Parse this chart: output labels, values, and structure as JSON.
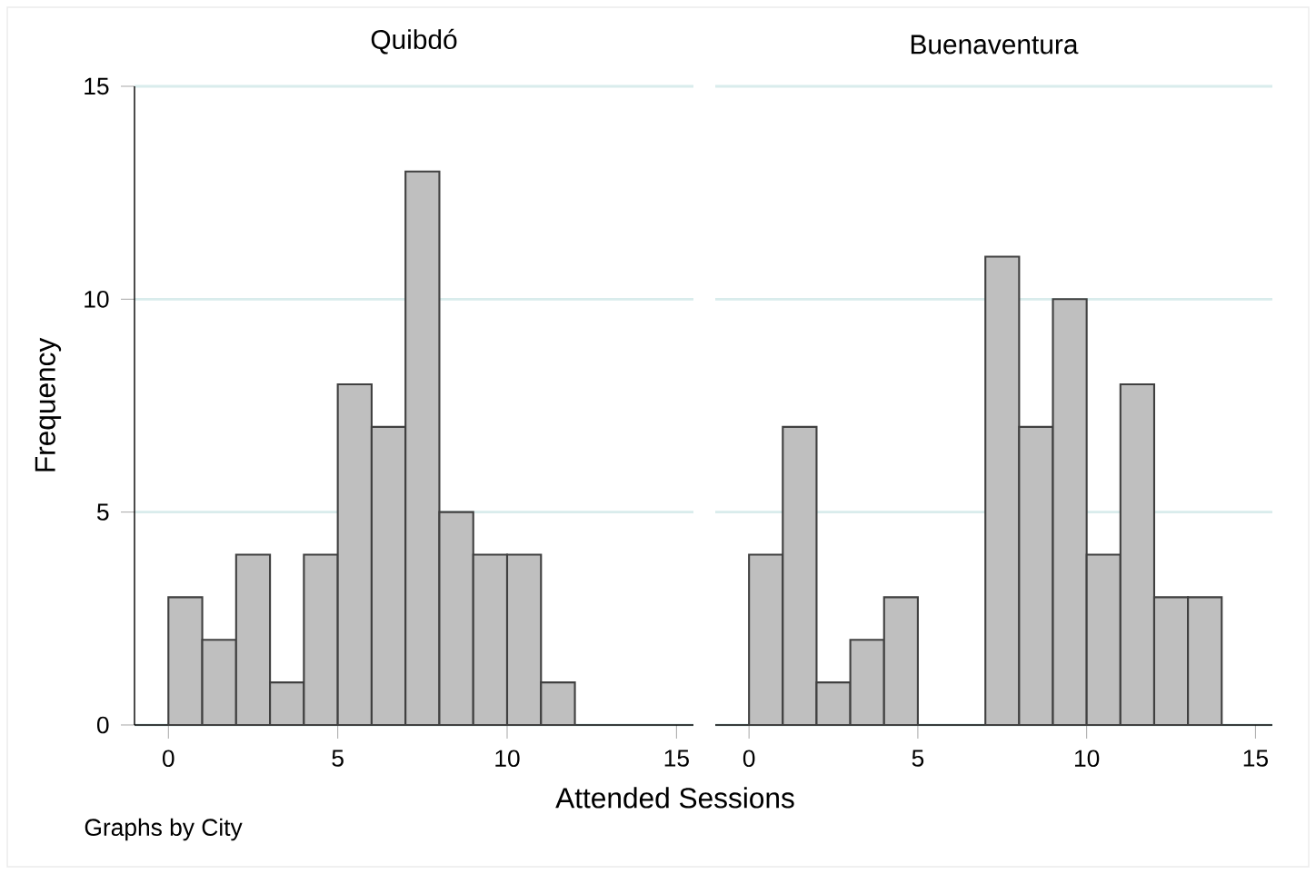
{
  "chart_data": [
    {
      "type": "histogram",
      "title": "Quibdó",
      "xlabel": "Attended Sessions",
      "ylabel": "Frequency",
      "annotations": [
        "Graphs by City"
      ],
      "bins": [
        0,
        1,
        2,
        3,
        4,
        5,
        6,
        7,
        8,
        9,
        10,
        11,
        12
      ],
      "values": [
        3,
        2,
        4,
        1,
        4,
        8,
        7,
        13,
        5,
        4,
        4,
        1
      ],
      "color": "#bfbfbf",
      "xlim": [
        -1,
        15.5
      ],
      "ylim": [
        0,
        15
      ],
      "xticks": [
        0,
        5,
        10,
        15
      ],
      "yticks": [
        0,
        5,
        10,
        15
      ],
      "grid": "y"
    },
    {
      "type": "histogram",
      "title": "Buenaventura",
      "bins": [
        0,
        1,
        2,
        3,
        4,
        5,
        6,
        7,
        8,
        9,
        10,
        11,
        12,
        13,
        14
      ],
      "values": [
        4,
        7,
        1,
        2,
        3,
        0,
        0,
        11,
        7,
        10,
        4,
        8,
        3,
        3
      ],
      "color": "#bfbfbf",
      "xlim": [
        -1,
        15.5
      ],
      "ylim": [
        0,
        15
      ],
      "xticks": [
        0,
        5,
        10,
        15
      ],
      "yticks": [
        0,
        5,
        10,
        15
      ],
      "grid": "y",
      "tick_labels": "x"
    }
  ]
}
